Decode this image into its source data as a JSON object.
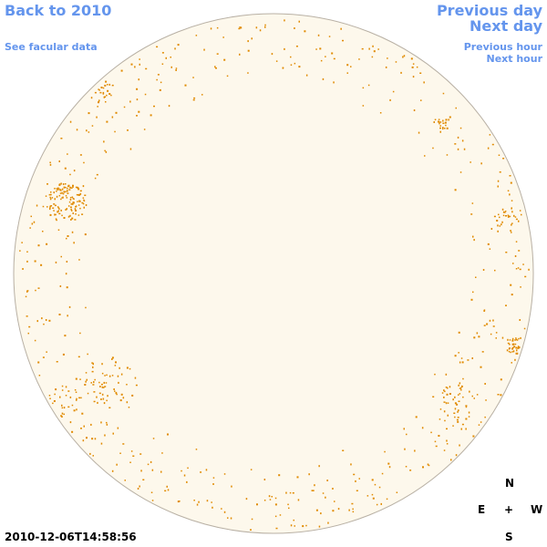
{
  "nav": {
    "back_to_year": "Back to 2010",
    "see_facular_data": "See facular data",
    "previous_day": "Previous day",
    "next_day": "Next day",
    "previous_hour": "Previous hour",
    "next_hour": "Next hour"
  },
  "compass": {
    "north": "N",
    "south": "S",
    "east": "E",
    "west": "W",
    "center": "+"
  },
  "timestamp": "2010-12-06T14:58:56",
  "colors": {
    "link": "#6495ed",
    "disk_fill": "#fdf8ec",
    "disk_outline": "#b8b0a4",
    "facula": "#e08a00"
  }
}
